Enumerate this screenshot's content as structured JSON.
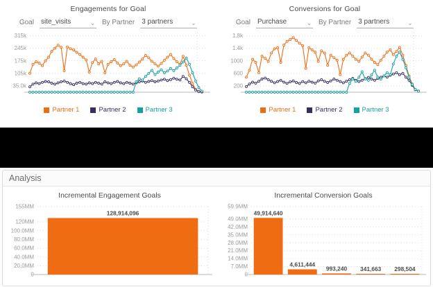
{
  "panels": {
    "engagements": {
      "title": "Engagements for Goal",
      "goal_label": "Goal",
      "goal_value": "site_visits",
      "by_partner_label": "By Partner",
      "partners_value": "3 partners"
    },
    "conversions": {
      "title": "Conversions for Goal",
      "goal_label": "Goal",
      "goal_value": "Purchase",
      "by_partner_label": "By Partner",
      "partners_value": "3 partners"
    }
  },
  "analysis": {
    "title": "Analysis"
  },
  "colors": {
    "partner1": "#F06C13",
    "partner2": "#3A2C5F",
    "partner3": "#17A0A0",
    "axis_text": "#9b9b9b",
    "grid": "#dedede",
    "baseline": "#cfcfcf",
    "value_label": "#4a4a4a"
  },
  "chart_data": [
    {
      "id": "engagements_line",
      "type": "line",
      "title": "Engagements for Goal",
      "unit": "thousands",
      "ylim": [
        0,
        332
      ],
      "yticks": [
        {
          "value": 315,
          "label": "315k"
        },
        {
          "value": 245,
          "label": "245k"
        },
        {
          "value": 175,
          "label": "175k"
        },
        {
          "value": 105,
          "label": "105k"
        },
        {
          "value": 35,
          "label": "35.0k"
        }
      ],
      "legend_position": "bottom",
      "series": [
        {
          "name": "Partner 1",
          "color": "#F06C13",
          "values": [
            105,
            155,
            170,
            162,
            148,
            175,
            195,
            228,
            245,
            262,
            250,
            120,
            252,
            242,
            235,
            222,
            210,
            195,
            180,
            112,
            165,
            185,
            158,
            172,
            108,
            155,
            170,
            182,
            162,
            148,
            158,
            172,
            150,
            140,
            152,
            168,
            185,
            205,
            192,
            172,
            158,
            145,
            160,
            178,
            195,
            210,
            188,
            170,
            155,
            200,
            150,
            95,
            48,
            15,
            4,
            2
          ]
        },
        {
          "name": "Partner 2",
          "color": "#3A2C5F",
          "values": [
            30,
            45,
            52,
            48,
            55,
            60,
            58,
            50,
            45,
            52,
            58,
            62,
            55,
            48,
            42,
            50,
            55,
            48,
            45,
            52,
            48,
            55,
            50,
            45,
            58,
            52,
            48,
            55,
            60,
            52,
            48,
            55,
            50,
            45,
            52,
            58,
            62,
            55,
            60,
            65,
            58,
            62,
            68,
            72,
            65,
            70,
            78,
            72,
            68,
            88,
            75,
            55,
            30,
            12,
            3,
            1
          ]
        },
        {
          "name": "Partner 3",
          "color": "#17A0A0",
          "values": [
            0,
            0,
            0,
            0,
            0,
            0,
            0,
            0,
            0,
            0,
            0,
            0,
            0,
            0,
            0,
            0,
            0,
            0,
            0,
            0,
            0,
            0,
            0,
            0,
            0,
            0,
            0,
            0,
            0,
            0,
            0,
            0,
            0,
            0,
            58,
            75,
            68,
            88,
            105,
            122,
            98,
            112,
            125,
            108,
            118,
            132,
            120,
            135,
            150,
            168,
            190,
            155,
            108,
            62,
            25,
            6
          ]
        }
      ]
    },
    {
      "id": "conversions_line",
      "type": "line",
      "title": "Conversions for Goal",
      "unit": "count",
      "ylim": [
        0,
        1900
      ],
      "yticks": [
        {
          "value": 1800,
          "label": "1.8k"
        },
        {
          "value": 1400,
          "label": "1.4k"
        },
        {
          "value": 1000,
          "label": "1000"
        },
        {
          "value": 600,
          "label": "600"
        },
        {
          "value": 200,
          "label": "200"
        }
      ],
      "legend_position": "bottom",
      "series": [
        {
          "name": "Partner 1",
          "color": "#F06C13",
          "values": [
            480,
            700,
            1050,
            950,
            620,
            1150,
            1080,
            980,
            1250,
            1380,
            1420,
            950,
            1500,
            1620,
            1680,
            1740,
            1650,
            1560,
            1480,
            760,
            1420,
            1350,
            1280,
            980,
            1320,
            1250,
            860,
            1180,
            1100,
            1020,
            560,
            1050,
            1180,
            1250,
            1150,
            1050,
            980,
            1120,
            1250,
            1180,
            1050,
            950,
            880,
            1020,
            1150,
            1280,
            1350,
            1200,
            1300,
            1430,
            1180,
            850,
            520,
            260,
            90,
            40
          ]
        },
        {
          "name": "Partner 2",
          "color": "#3A2C5F",
          "values": [
            180,
            260,
            320,
            290,
            350,
            420,
            450,
            400,
            350,
            300,
            340,
            380,
            320,
            280,
            330,
            360,
            310,
            280,
            340,
            300,
            350,
            320,
            290,
            360,
            400,
            350,
            310,
            360,
            420,
            380,
            340,
            300,
            350,
            400,
            440,
            380,
            340,
            380,
            430,
            470,
            420,
            380,
            440,
            480,
            520,
            480,
            540,
            580,
            620,
            560,
            600,
            480,
            380,
            220,
            80,
            30
          ]
        },
        {
          "name": "Partner 3",
          "color": "#17A0A0",
          "values": [
            0,
            0,
            0,
            0,
            0,
            0,
            0,
            0,
            0,
            0,
            0,
            0,
            0,
            0,
            0,
            0,
            0,
            0,
            0,
            0,
            0,
            0,
            0,
            0,
            0,
            0,
            0,
            0,
            0,
            0,
            0,
            0,
            0,
            280,
            420,
            350,
            480,
            650,
            420,
            380,
            550,
            700,
            480,
            420,
            520,
            620,
            560,
            900,
            1150,
            1280,
            1050,
            780,
            480,
            250,
            90,
            30
          ]
        }
      ]
    },
    {
      "id": "incremental_engagement",
      "type": "bar",
      "title": "Incremental Engagement Goals",
      "categories": [
        ""
      ],
      "values": [
        128914096
      ],
      "value_labels": [
        "128,914,096"
      ],
      "bar_color": "#F06C13",
      "ylim": [
        0,
        155000000
      ],
      "yticks": [
        {
          "value": 155000000,
          "label": "155MM"
        },
        {
          "value": 120000000,
          "label": "120MM"
        },
        {
          "value": 100000000,
          "label": "100.0MM"
        },
        {
          "value": 80000000,
          "label": "80.0MM"
        },
        {
          "value": 60000000,
          "label": "60.0MM"
        },
        {
          "value": 40000000,
          "label": "40.0MM"
        },
        {
          "value": 20000000,
          "label": "20.0MM"
        },
        {
          "value": 0,
          "label": "0"
        }
      ]
    },
    {
      "id": "incremental_conversion",
      "type": "bar",
      "title": "Incremental Conversion Goals",
      "categories": [
        "",
        "",
        "",
        "",
        ""
      ],
      "values": [
        49914640,
        4611444,
        993240,
        341663,
        298504
      ],
      "value_labels": [
        "49,914,640",
        "4,611,444",
        "993,240",
        "341,663",
        "298,504"
      ],
      "bar_color": "#F06C13",
      "ylim": [
        0,
        59900000
      ],
      "yticks": [
        {
          "value": 59900000,
          "label": "59.9MM"
        },
        {
          "value": 49000000,
          "label": "49.0MM"
        },
        {
          "value": 42000000,
          "label": "42.0MM"
        },
        {
          "value": 35000000,
          "label": "35.0MM"
        },
        {
          "value": 28000000,
          "label": "28.0MM"
        },
        {
          "value": 21000000,
          "label": "21.0MM"
        },
        {
          "value": 14000000,
          "label": "14.0MM"
        },
        {
          "value": 7000000,
          "label": "7.0MM"
        },
        {
          "value": 0,
          "label": "0"
        }
      ]
    }
  ]
}
